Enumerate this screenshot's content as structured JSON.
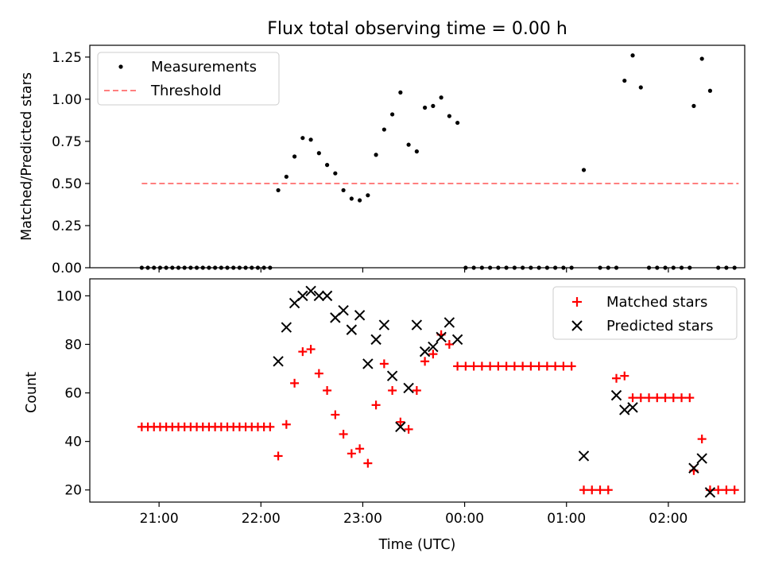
{
  "figure": {
    "title": "Flux total observing time = 0.00 h",
    "xlabel": "Time (UTC)",
    "xticks": [
      {
        "label": "21:00",
        "t": 20.99
      },
      {
        "label": "22:00",
        "t": 21.99
      },
      {
        "label": "23:00",
        "t": 22.99
      },
      {
        "label": "00:00",
        "t": 23.99
      },
      {
        "label": "01:00",
        "t": 24.99
      },
      {
        "label": "02:00",
        "t": 25.99
      }
    ],
    "xlim": [
      20.31,
      26.74
    ]
  },
  "chart_data": [
    {
      "type": "scatter",
      "title": "Flux total observing time = 0.00 h",
      "ylabel": "Matched/Predicted stars",
      "xlabel": "",
      "ylim": [
        0,
        1.32
      ],
      "yticks": [
        "0.00",
        "0.25",
        "0.50",
        "0.75",
        "1.00",
        "1.25"
      ],
      "legend": {
        "position": "top-left",
        "entries": [
          "Measurements",
          "Threshold"
        ]
      },
      "colors": {
        "measurements": "#000000",
        "threshold": "#ff7f7f"
      },
      "series": [
        {
          "name": "Measurements",
          "marker": "dot",
          "x": [
            20.82,
            20.88,
            20.94,
            21.0,
            21.06,
            21.12,
            21.18,
            21.24,
            21.3,
            21.36,
            21.42,
            21.48,
            21.54,
            21.6,
            21.66,
            21.72,
            21.78,
            21.84,
            21.9,
            21.96,
            22.02,
            22.08,
            22.16,
            22.24,
            22.32,
            22.4,
            22.48,
            22.56,
            22.64,
            22.72,
            22.8,
            22.88,
            22.96,
            23.04,
            23.12,
            23.2,
            23.28,
            23.36,
            23.44,
            23.52,
            23.6,
            23.68,
            23.76,
            23.84,
            23.92,
            24.0,
            24.08,
            24.16,
            24.24,
            24.32,
            24.4,
            24.48,
            24.56,
            24.64,
            24.72,
            24.8,
            24.88,
            24.96,
            25.04,
            25.16,
            25.32,
            25.4,
            25.48,
            25.56,
            25.64,
            25.72,
            25.8,
            25.88,
            25.96,
            26.04,
            26.12,
            26.2,
            26.24,
            26.32,
            26.4,
            26.48,
            26.56,
            26.64
          ],
          "y": [
            0,
            0,
            0,
            0,
            0,
            0,
            0,
            0,
            0,
            0,
            0,
            0,
            0,
            0,
            0,
            0,
            0,
            0,
            0,
            0,
            0,
            0,
            0.46,
            0.54,
            0.66,
            0.77,
            0.76,
            0.68,
            0.61,
            0.56,
            0.46,
            0.41,
            0.4,
            0.43,
            0.67,
            0.82,
            0.91,
            1.04,
            0.73,
            0.69,
            0.95,
            0.96,
            1.01,
            0.9,
            0.86,
            0,
            0,
            0,
            0,
            0,
            0,
            0,
            0,
            0,
            0,
            0,
            0,
            0,
            0,
            0.58,
            0,
            0,
            0,
            1.11,
            1.26,
            1.07,
            0,
            0,
            0,
            0,
            0,
            0,
            0.96,
            1.24,
            1.05,
            0,
            0,
            0
          ]
        },
        {
          "name": "Threshold",
          "style": "dashed",
          "x": [
            20.82,
            26.68
          ],
          "y": [
            0.5,
            0.5
          ]
        }
      ]
    },
    {
      "type": "scatter",
      "title": "",
      "ylabel": "Count",
      "xlabel": "Time (UTC)",
      "ylim": [
        15,
        107
      ],
      "yticks": [
        "20",
        "40",
        "60",
        "80",
        "100"
      ],
      "legend": {
        "position": "top-right",
        "entries": [
          "Matched stars",
          "Predicted stars"
        ]
      },
      "colors": {
        "matched": "#ff0000",
        "predicted": "#000000"
      },
      "series": [
        {
          "name": "Matched stars",
          "marker": "plus",
          "x": [
            20.82,
            20.88,
            20.94,
            21.0,
            21.06,
            21.12,
            21.18,
            21.24,
            21.3,
            21.36,
            21.42,
            21.48,
            21.54,
            21.6,
            21.66,
            21.72,
            21.78,
            21.84,
            21.9,
            21.96,
            22.02,
            22.08,
            22.16,
            22.24,
            22.32,
            22.4,
            22.48,
            22.56,
            22.64,
            22.72,
            22.8,
            22.88,
            22.96,
            23.04,
            23.12,
            23.2,
            23.28,
            23.36,
            23.44,
            23.52,
            23.6,
            23.68,
            23.76,
            23.84,
            23.92,
            24.0,
            24.08,
            24.16,
            24.24,
            24.32,
            24.4,
            24.48,
            24.56,
            24.64,
            24.72,
            24.8,
            24.88,
            24.96,
            25.04,
            25.16,
            25.24,
            25.32,
            25.4,
            25.48,
            25.56,
            25.64,
            25.72,
            25.8,
            25.88,
            25.96,
            26.04,
            26.12,
            26.2,
            26.24,
            26.32,
            26.4,
            26.48,
            26.56,
            26.64
          ],
          "y": [
            46,
            46,
            46,
            46,
            46,
            46,
            46,
            46,
            46,
            46,
            46,
            46,
            46,
            46,
            46,
            46,
            46,
            46,
            46,
            46,
            46,
            46,
            34,
            47,
            64,
            77,
            78,
            68,
            61,
            51,
            43,
            35,
            37,
            31,
            55,
            72,
            61,
            48,
            45,
            61,
            73,
            76,
            84,
            80,
            71,
            71,
            71,
            71,
            71,
            71,
            71,
            71,
            71,
            71,
            71,
            71,
            71,
            71,
            71,
            20,
            20,
            20,
            20,
            66,
            67,
            58,
            58,
            58,
            58,
            58,
            58,
            58,
            58,
            28,
            41,
            20,
            20,
            20,
            20
          ]
        },
        {
          "name": "Predicted stars",
          "marker": "x",
          "x": [
            22.16,
            22.24,
            22.32,
            22.4,
            22.48,
            22.56,
            22.64,
            22.72,
            22.8,
            22.88,
            22.96,
            23.04,
            23.12,
            23.2,
            23.28,
            23.36,
            23.44,
            23.52,
            23.6,
            23.68,
            23.76,
            23.84,
            23.92,
            25.16,
            25.48,
            25.56,
            25.64,
            26.24,
            26.32,
            26.4
          ],
          "y": [
            73,
            87,
            97,
            100,
            102,
            100,
            100,
            91,
            94,
            86,
            92,
            72,
            82,
            88,
            67,
            46,
            62,
            88,
            77,
            79,
            83,
            89,
            82,
            34,
            59,
            53,
            54,
            29,
            33,
            19
          ]
        }
      ]
    }
  ]
}
